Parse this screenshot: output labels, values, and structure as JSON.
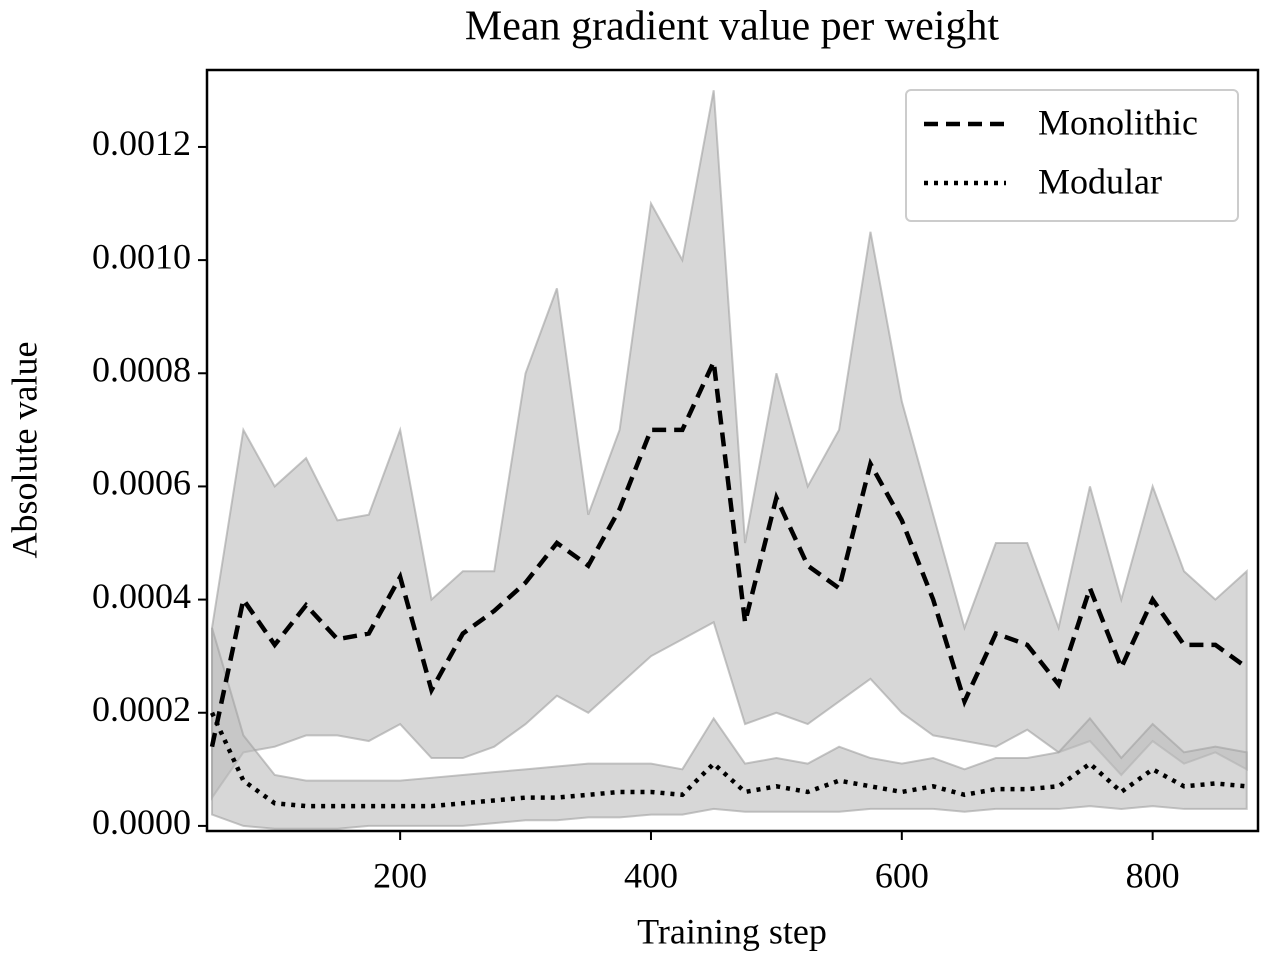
{
  "chart_data": {
    "type": "line",
    "title": "Mean gradient value per weight",
    "xlabel": "Training step",
    "ylabel": "Absolute value",
    "x": [
      50,
      75,
      100,
      125,
      150,
      175,
      200,
      225,
      250,
      275,
      300,
      325,
      350,
      375,
      400,
      425,
      450,
      475,
      500,
      525,
      550,
      575,
      600,
      625,
      650,
      675,
      700,
      725,
      750,
      775,
      800,
      825,
      850,
      875
    ],
    "series": [
      {
        "name": "Monolithic",
        "color": "#000000",
        "dash": "dashed",
        "band_color": "#bdbdbd",
        "values": [
          0.00014,
          0.0004,
          0.00032,
          0.00039,
          0.00033,
          0.00034,
          0.00044,
          0.00024,
          0.00034,
          0.00038,
          0.00043,
          0.0005,
          0.00046,
          0.00056,
          0.0007,
          0.0007,
          0.00082,
          0.00036,
          0.00058,
          0.00046,
          0.00042,
          0.00064,
          0.00054,
          0.0004,
          0.00022,
          0.00034,
          0.00032,
          0.00025,
          0.00042,
          0.00028,
          0.0004,
          0.00032,
          0.00032,
          0.00028
        ],
        "upper": [
          0.00035,
          0.0007,
          0.0006,
          0.00065,
          0.00054,
          0.00055,
          0.0007,
          0.0004,
          0.00045,
          0.00045,
          0.0008,
          0.00095,
          0.00055,
          0.0007,
          0.0011,
          0.001,
          0.0013,
          0.0005,
          0.0008,
          0.0006,
          0.0007,
          0.00105,
          0.00075,
          0.00055,
          0.00035,
          0.0005,
          0.0005,
          0.00035,
          0.0006,
          0.0004,
          0.0006,
          0.00045,
          0.0004,
          0.00045
        ],
        "lower": [
          5e-05,
          0.00013,
          0.00014,
          0.00016,
          0.00016,
          0.00015,
          0.00018,
          0.00012,
          0.00012,
          0.00014,
          0.00018,
          0.00023,
          0.0002,
          0.00025,
          0.0003,
          0.00033,
          0.00036,
          0.00018,
          0.0002,
          0.00018,
          0.00022,
          0.00026,
          0.0002,
          0.00016,
          0.00015,
          0.00014,
          0.00017,
          0.00013,
          0.00015,
          9e-05,
          0.00015,
          0.00011,
          0.00013,
          0.0001
        ]
      },
      {
        "name": "Modular",
        "color": "#000000",
        "dash": "dotted",
        "band_color": "#bdbdbd",
        "values": [
          0.0002,
          8e-05,
          4e-05,
          3.5e-05,
          3.5e-05,
          3.5e-05,
          3.5e-05,
          3.5e-05,
          4e-05,
          4.5e-05,
          5e-05,
          5e-05,
          5.5e-05,
          6e-05,
          6e-05,
          5.5e-05,
          0.00011,
          6e-05,
          7e-05,
          6e-05,
          8e-05,
          7e-05,
          6e-05,
          7e-05,
          5.5e-05,
          6.5e-05,
          6.5e-05,
          7e-05,
          0.00011,
          6e-05,
          0.0001,
          7e-05,
          7.5e-05,
          7e-05
        ],
        "upper": [
          0.00035,
          0.00016,
          9e-05,
          8e-05,
          8e-05,
          8e-05,
          8e-05,
          8.5e-05,
          9e-05,
          9.5e-05,
          0.0001,
          0.000105,
          0.00011,
          0.00011,
          0.00011,
          0.0001,
          0.00019,
          0.00011,
          0.00012,
          0.00011,
          0.00014,
          0.00012,
          0.00011,
          0.00012,
          0.0001,
          0.00012,
          0.00012,
          0.00013,
          0.00019,
          0.00012,
          0.00018,
          0.00013,
          0.00014,
          0.00013
        ],
        "lower": [
          2e-05,
          0,
          -5e-06,
          -5e-06,
          -5e-06,
          0,
          0,
          0,
          0,
          5e-06,
          1e-05,
          1e-05,
          1.5e-05,
          1.5e-05,
          2e-05,
          2e-05,
          3e-05,
          2.5e-05,
          2.5e-05,
          2.5e-05,
          2.5e-05,
          3e-05,
          3e-05,
          3e-05,
          2.5e-05,
          3e-05,
          3e-05,
          3e-05,
          3.5e-05,
          3e-05,
          3.5e-05,
          3e-05,
          3e-05,
          3e-05
        ]
      }
    ],
    "xlim": [
      46,
      884
    ],
    "ylim": [
      -9e-06,
      0.001336
    ],
    "xticks": [
      200,
      400,
      600,
      800
    ],
    "yticks": [
      {
        "value": 0,
        "label": "0.0000"
      },
      {
        "value": 0.0002,
        "label": "0.0002"
      },
      {
        "value": 0.0004,
        "label": "0.0004"
      },
      {
        "value": 0.0006,
        "label": "0.0006"
      },
      {
        "value": 0.0008,
        "label": "0.0008"
      },
      {
        "value": 0.001,
        "label": "0.0010"
      },
      {
        "value": 0.0012,
        "label": "0.0012"
      }
    ],
    "grid": false,
    "legend": "upper right"
  }
}
